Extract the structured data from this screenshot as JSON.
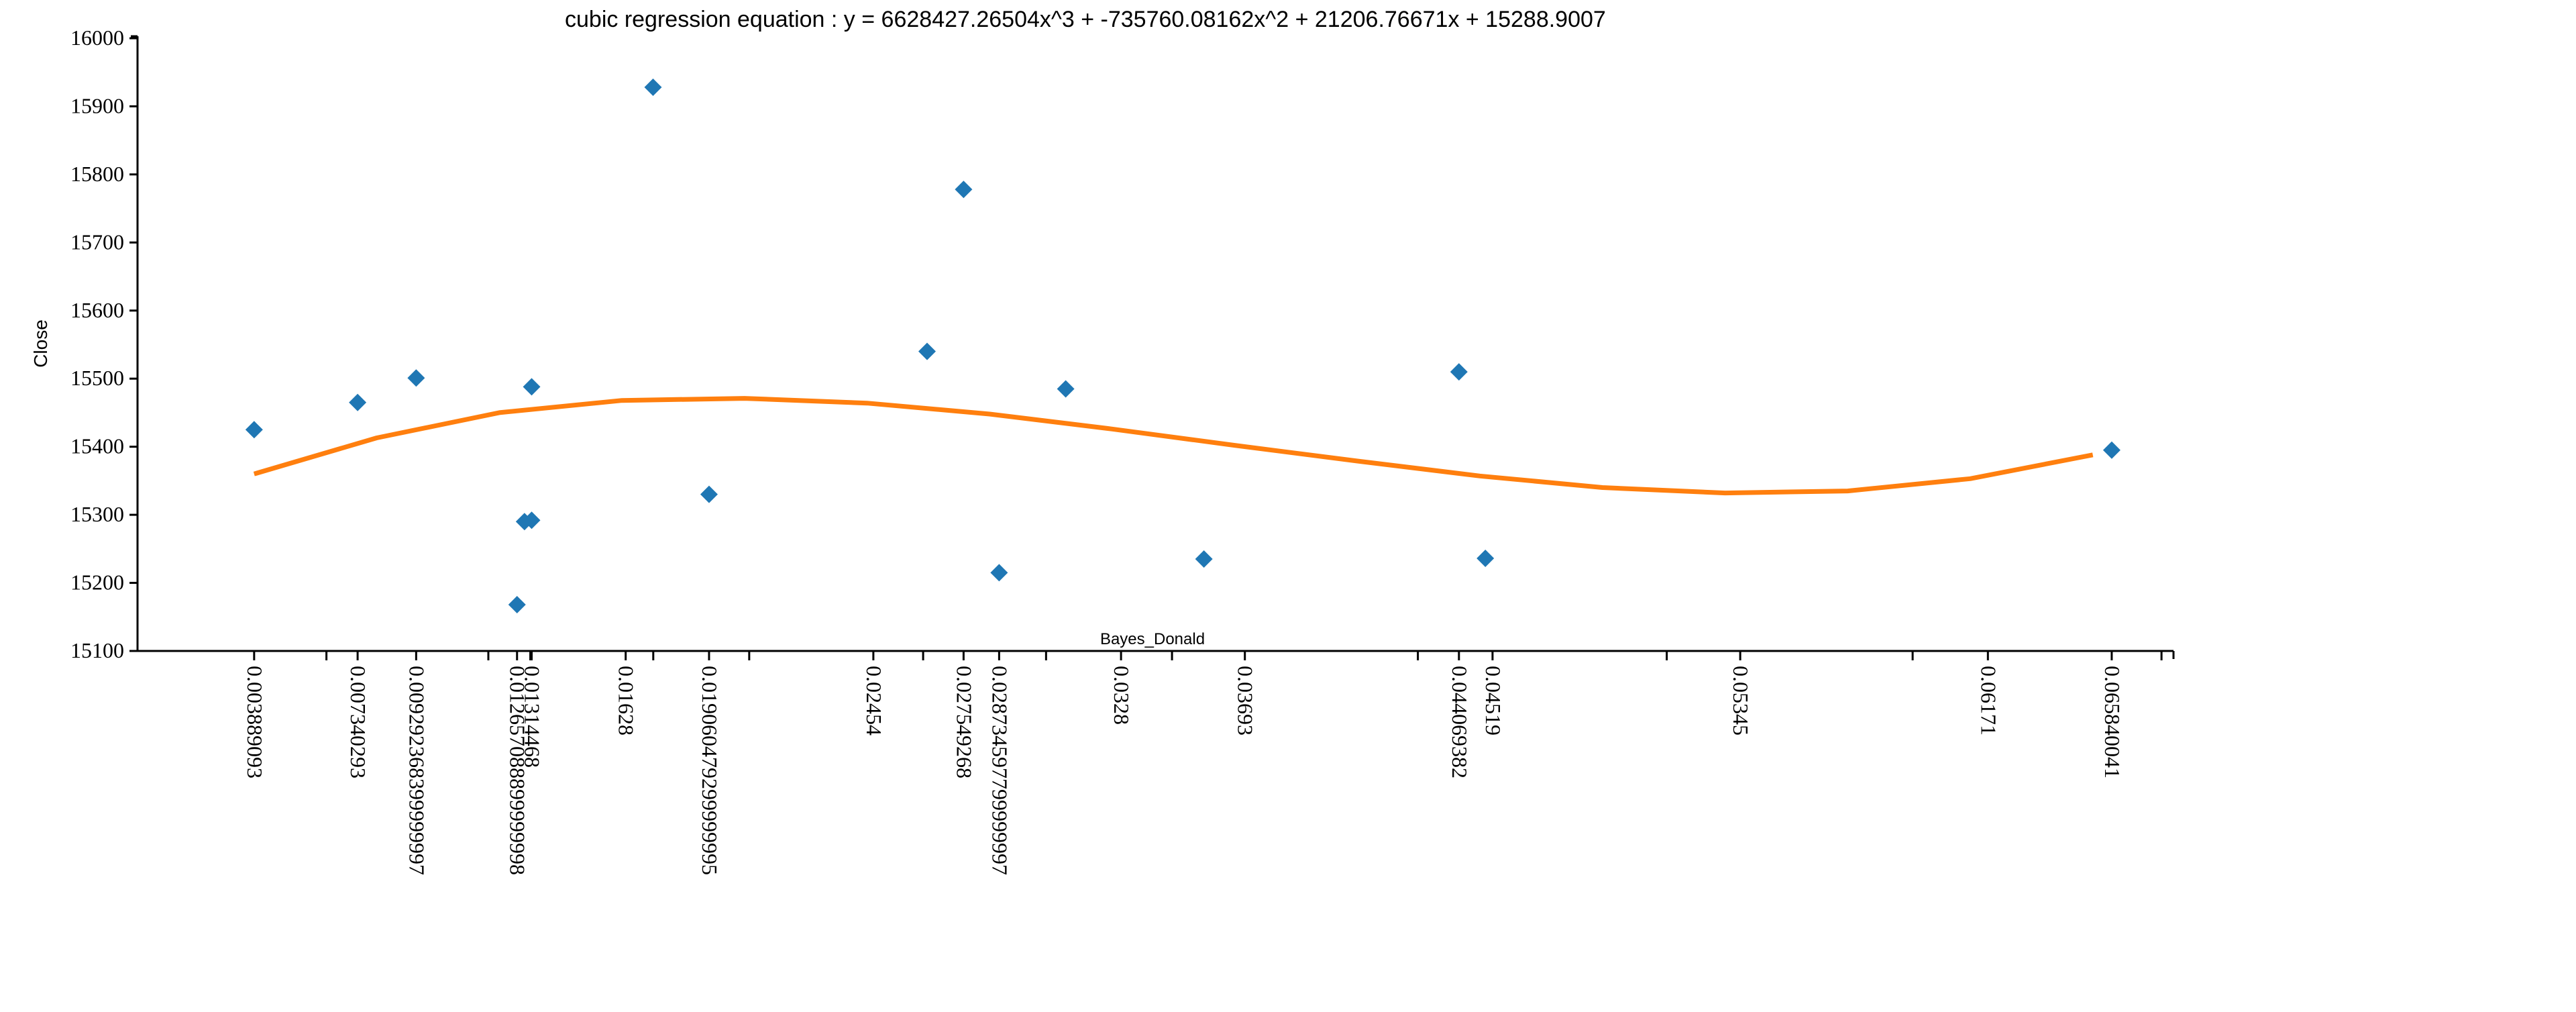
{
  "chart_data": {
    "type": "scatter",
    "title": "cubic regression equation : y = 6628427.26504x^3 + -735760.08162x^2 + 21206.76671x + 15288.9007",
    "xlabel": "Bayes_Donald",
    "ylabel": "Close",
    "xlim": [
      -0.0,
      0.0679
    ],
    "ylim": [
      15100,
      16000
    ],
    "y_ticks": [
      15100,
      15200,
      15300,
      15400,
      15500,
      15600,
      15700,
      15800,
      15900,
      16000
    ],
    "x_ticks_labeled": [
      {
        "value": 0.003889093,
        "label": "0.003889093"
      },
      {
        "value": 0.007340293,
        "label": "0.007340293"
      },
      {
        "value": 0.009292368399999997,
        "label": "0.009292368399999997"
      },
      {
        "value": 0.012657088899999999,
        "label": "0.012657088899999998"
      },
      {
        "value": 0.01314468,
        "label": "0.01314468"
      },
      {
        "value": 0.01628,
        "label": "0.01628"
      },
      {
        "value": 0.019060479299999995,
        "label": "0.019060479299999995"
      },
      {
        "value": 0.02454,
        "label": "0.02454"
      },
      {
        "value": 0.027549268,
        "label": "0.027549268"
      },
      {
        "value": 0.028734597799999997,
        "label": "0.028734597799999997"
      },
      {
        "value": 0.0328,
        "label": "0.0328"
      },
      {
        "value": 0.03693,
        "label": "0.03693"
      },
      {
        "value": 0.044069382,
        "label": "0.044069382"
      },
      {
        "value": 0.04519,
        "label": "0.04519"
      },
      {
        "value": 0.05345,
        "label": "0.05345"
      },
      {
        "value": 0.06171,
        "label": "0.06171"
      },
      {
        "value": 0.065840041,
        "label": "0.065840041"
      }
    ],
    "x_ticks_unlabeled": [
      0.0063,
      0.0117,
      0.0131,
      0.0172,
      0.0204,
      0.0262,
      0.0303,
      0.0345,
      0.0427,
      0.051,
      0.0592,
      0.0675
    ],
    "series": [
      {
        "type": "scatter",
        "marker": "diamond",
        "color": "#1f77b4",
        "points": [
          {
            "x": 0.003889093,
            "y": 15425
          },
          {
            "x": 0.007340293,
            "y": 15465
          },
          {
            "x": 0.009292368,
            "y": 15501
          },
          {
            "x": 0.012657089,
            "y": 15168
          },
          {
            "x": 0.012905,
            "y": 15290
          },
          {
            "x": 0.01314468,
            "y": 15488
          },
          {
            "x": 0.01314468,
            "y": 15292
          },
          {
            "x": 0.017193,
            "y": 15928
          },
          {
            "x": 0.019060479,
            "y": 15330
          },
          {
            "x": 0.026332,
            "y": 15540
          },
          {
            "x": 0.027549268,
            "y": 15778
          },
          {
            "x": 0.028734598,
            "y": 15215
          },
          {
            "x": 0.030955,
            "y": 15485
          },
          {
            "x": 0.035564,
            "y": 15235
          },
          {
            "x": 0.044069382,
            "y": 15510
          },
          {
            "x": 0.04495,
            "y": 15236
          },
          {
            "x": 0.065840041,
            "y": 15395
          }
        ]
      },
      {
        "type": "line",
        "color": "#ff7f0e",
        "points": [
          {
            "x": 0.003889093,
            "y": 15360
          },
          {
            "x": 0.007977,
            "y": 15413
          },
          {
            "x": 0.012065,
            "y": 15450
          },
          {
            "x": 0.016153,
            "y": 15468
          },
          {
            "x": 0.020241,
            "y": 15471
          },
          {
            "x": 0.024329,
            "y": 15464
          },
          {
            "x": 0.028417,
            "y": 15448
          },
          {
            "x": 0.032505,
            "y": 15426
          },
          {
            "x": 0.036593,
            "y": 15402
          },
          {
            "x": 0.040681,
            "y": 15379
          },
          {
            "x": 0.044769,
            "y": 15357
          },
          {
            "x": 0.048857,
            "y": 15340
          },
          {
            "x": 0.052945,
            "y": 15332
          },
          {
            "x": 0.057033,
            "y": 15335
          },
          {
            "x": 0.061121,
            "y": 15353
          },
          {
            "x": 0.065209,
            "y": 15388
          }
        ]
      }
    ]
  }
}
